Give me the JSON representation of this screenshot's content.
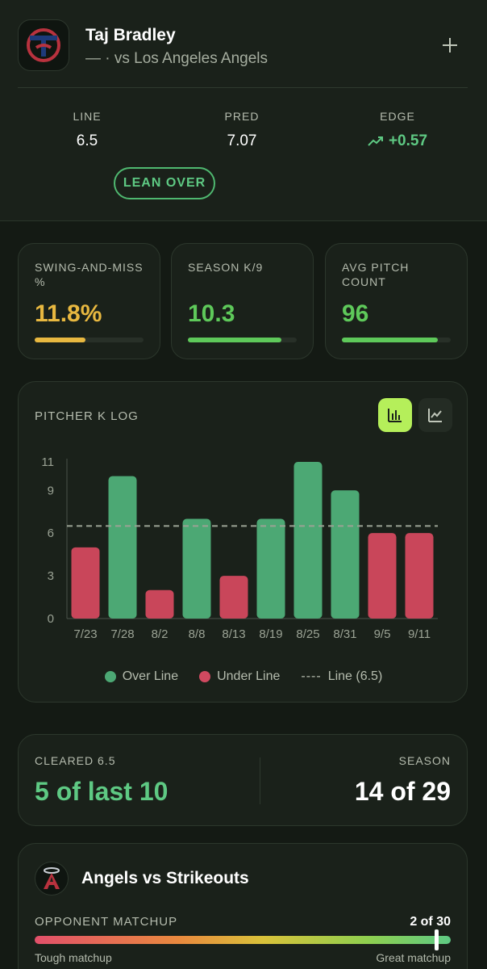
{
  "header": {
    "player_name": "Taj Bradley",
    "subtitle": "— · vs Los Angeles Angels",
    "add_icon": "plus-icon",
    "team_logo_icon": "twins-tc-logo",
    "stats": {
      "line_label": "LINE",
      "line_value": "6.5",
      "pred_label": "PRED",
      "pred_value": "7.07",
      "edge_label": "EDGE",
      "edge_value": "+0.57"
    },
    "lean_label": "LEAN OVER"
  },
  "metrics": [
    {
      "label": "SWING-AND-MISS %",
      "value": "11.8%",
      "fill": 0.47,
      "color": "#e8b840"
    },
    {
      "label": "SEASON K/9",
      "value": "10.3",
      "fill": 0.86,
      "color": "#5ec95a"
    },
    {
      "label": "AVG PITCH COUNT",
      "value": "96",
      "fill": 0.88,
      "color": "#5ec95a"
    }
  ],
  "chart": {
    "title": "PITCHER K LOG",
    "bar_toggle_icon": "bar-chart-icon",
    "line_toggle_icon": "line-chart-icon",
    "legend": {
      "over": "Over Line",
      "under": "Under Line",
      "line_dashes": "----",
      "line": "Line (6.5)"
    }
  },
  "chart_data": {
    "type": "bar",
    "title": "PITCHER K LOG",
    "categories": [
      "7/23",
      "7/28",
      "8/2",
      "8/8",
      "8/13",
      "8/19",
      "8/25",
      "8/31",
      "9/5",
      "9/11"
    ],
    "values": [
      5,
      10,
      2,
      7,
      3,
      7,
      11,
      9,
      6,
      6
    ],
    "line": 6.5,
    "ylim": [
      0,
      11
    ],
    "yticks": [
      0,
      3,
      6,
      9,
      11
    ],
    "over_color": "#4ca874",
    "under_color": "#c9465a",
    "legend_position": "bottom"
  },
  "cleared": {
    "label": "CLEARED 6.5",
    "value": "5 of last 10",
    "season_label": "SEASON",
    "season_value": "14 of 29"
  },
  "opponent": {
    "logo_icon": "angels-logo",
    "title": "Angels vs Strikeouts",
    "label": "OPPONENT MATCHUP",
    "rank": "2 of 30",
    "position": 0.967,
    "left_text": "Tough matchup",
    "right_text": "Great matchup"
  }
}
